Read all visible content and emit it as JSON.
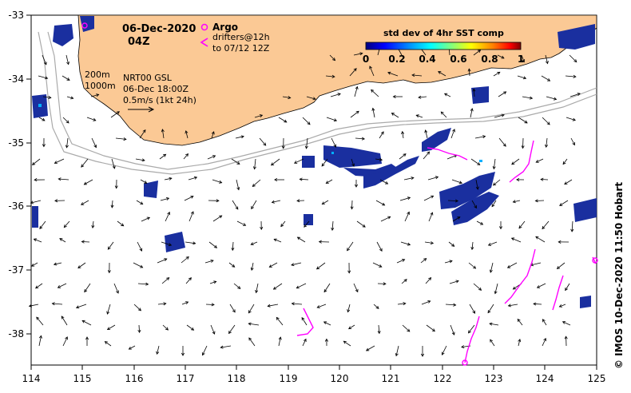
{
  "header": {
    "date": "06-Dec-2020",
    "time": "04Z"
  },
  "legend": {
    "argo_label": "Argo",
    "drifters_label": "drifters@12h",
    "drifters_sub": "to 07/12 12Z",
    "colorbar_title": "std dev of 4hr SST comp",
    "colorbar_ticks": [
      "0",
      "0.2",
      "0.4",
      "0.6",
      "0.8",
      "1"
    ],
    "colorbar_colors": [
      "#00007f",
      "#0000ff",
      "#007fff",
      "#00ffff",
      "#7fff7f",
      "#ffff00",
      "#ff7f00",
      "#ff0000",
      "#7f0000"
    ]
  },
  "info": {
    "depth1": "200m",
    "depth2": "1000m",
    "product": "NRT00 GSL",
    "valid": "06-Dec 18:00Z",
    "scale": "0.5m/s (1kt 24h)"
  },
  "axes": {
    "x_ticks": [
      "114",
      "115",
      "116",
      "117",
      "118",
      "119",
      "120",
      "121",
      "122",
      "123",
      "124",
      "125"
    ],
    "y_ticks": [
      "-33",
      "-34",
      "-35",
      "-36",
      "-37",
      "-38"
    ]
  },
  "credit": "© IMOS 10-Dec-2020 11:50 Hobart",
  "colors": {
    "land": "#fbc995",
    "sst_blob": "#1a2f9f",
    "drifter": "#ff00ff",
    "isobath": "#aaaaaa"
  },
  "map_extent": {
    "lon": [
      114,
      125
    ],
    "lat": [
      -38.5,
      -33
    ]
  }
}
